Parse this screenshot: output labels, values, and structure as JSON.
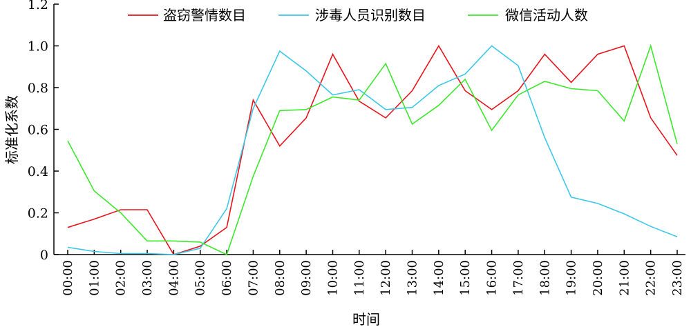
{
  "chart_data": {
    "type": "line",
    "title": "",
    "xlabel": "时间",
    "ylabel": "标准化系数",
    "ylim": [
      0,
      1.2
    ],
    "yticks": [
      "0",
      "0.2",
      "0.4",
      "0.6",
      "0.8",
      "1.0",
      "1.2"
    ],
    "yticks_values": [
      0,
      0.2,
      0.4,
      0.6,
      0.8,
      1.0,
      1.2
    ],
    "categories": [
      "00:00",
      "01:00",
      "02:00",
      "03:00",
      "04:00",
      "05:00",
      "06:00",
      "07:00",
      "08:00",
      "09:00",
      "10:00",
      "11:00",
      "12:00",
      "13:00",
      "14:00",
      "15:00",
      "16:00",
      "17:00",
      "18:00",
      "19:00",
      "20:00",
      "21:00",
      "22:00",
      "23:00"
    ],
    "grid": false,
    "legend_position": "top",
    "series": [
      {
        "name": "盗窃警情数目",
        "color": "#e8131b",
        "values": [
          0.13,
          0.17,
          0.215,
          0.215,
          0.0,
          0.04,
          0.13,
          0.74,
          0.52,
          0.655,
          0.96,
          0.735,
          0.655,
          0.785,
          1.0,
          0.785,
          0.695,
          0.785,
          0.96,
          0.825,
          0.96,
          1.0,
          0.655,
          0.475
        ]
      },
      {
        "name": "涉毒人员识别数目",
        "color": "#3cc8e8",
        "values": [
          0.035,
          0.015,
          0.005,
          0.005,
          0.0,
          0.03,
          0.22,
          0.7,
          0.975,
          0.88,
          0.765,
          0.79,
          0.695,
          0.705,
          0.81,
          0.865,
          1.0,
          0.905,
          0.56,
          0.275,
          0.245,
          0.195,
          0.135,
          0.085
        ]
      },
      {
        "name": "微信活动人数",
        "color": "#3ce82c",
        "values": [
          0.545,
          0.305,
          0.2,
          0.065,
          0.065,
          0.06,
          0.0,
          0.375,
          0.69,
          0.695,
          0.755,
          0.74,
          0.915,
          0.625,
          0.715,
          0.84,
          0.595,
          0.765,
          0.83,
          0.795,
          0.785,
          0.64,
          1.0,
          0.53
        ]
      }
    ]
  }
}
